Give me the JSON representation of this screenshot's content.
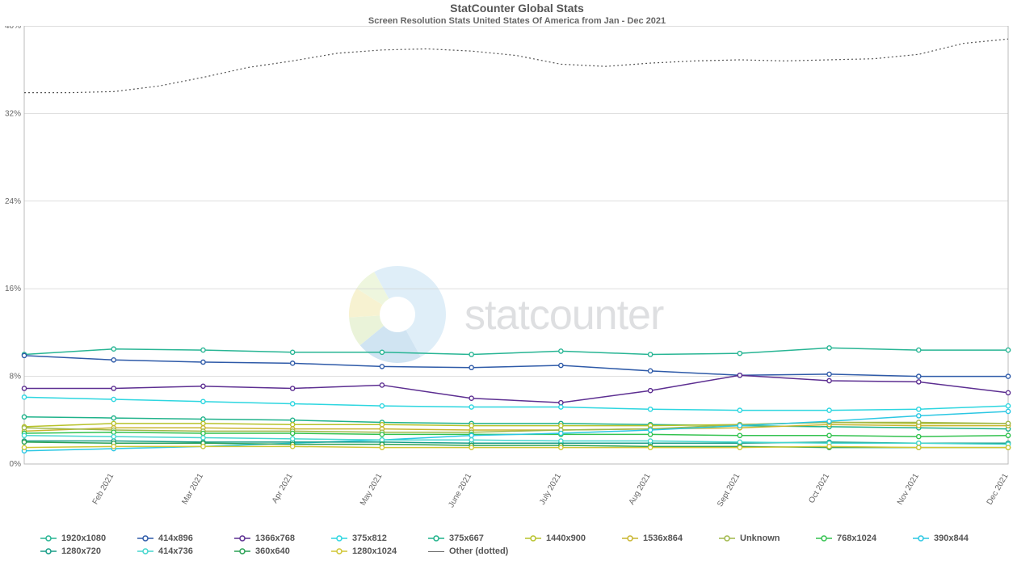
{
  "title": "StatCounter Global Stats",
  "subtitle": "Screen Resolution Stats United States Of America from Jan - Dec 2021",
  "watermark_text": "statcounter",
  "chart": {
    "type": "line",
    "xlim": [
      0,
      11
    ],
    "ylim": [
      0,
      40
    ],
    "ytick_step": 8,
    "ytick_suffix": "%",
    "grid_color": "#cccccc",
    "background_color": "#ffffff",
    "border_color": "#bbbbbb",
    "title_fontsize": 14,
    "subtitle_fontsize": 11,
    "tick_fontsize": 10,
    "marker_radius": 2.6,
    "line_width": 1.5,
    "x_labels": [
      "",
      "Feb 2021",
      "Mar 2021",
      "Apr 2021",
      "May 2021",
      "June 2021",
      "July 2021",
      "Aug 2021",
      "Sept 2021",
      "Oct 2021",
      "Nov 2021",
      "Dec 2021"
    ],
    "series": [
      {
        "name": "1920x1080",
        "color": "#28b594",
        "values": [
          10.0,
          10.5,
          10.4,
          10.2,
          10.2,
          10.0,
          10.3,
          10.0,
          10.1,
          10.6,
          10.4,
          10.4,
          10.1
        ]
      },
      {
        "name": "414x896",
        "color": "#2e5aa8",
        "values": [
          9.9,
          9.5,
          9.3,
          9.2,
          8.9,
          8.8,
          9.0,
          8.5,
          8.1,
          8.2,
          8.0,
          8.0,
          8.3
        ]
      },
      {
        "name": "1366x768",
        "color": "#5c2e91",
        "values": [
          6.9,
          6.9,
          7.1,
          6.9,
          7.2,
          6.0,
          5.6,
          6.7,
          8.1,
          7.6,
          7.5,
          6.5,
          6.5
        ]
      },
      {
        "name": "375x812",
        "color": "#2dd6e0",
        "values": [
          6.1,
          5.9,
          5.7,
          5.5,
          5.3,
          5.2,
          5.2,
          5.0,
          4.9,
          4.9,
          5.0,
          5.3,
          5.3
        ]
      },
      {
        "name": "375x667",
        "color": "#1fb28a",
        "values": [
          4.3,
          4.2,
          4.1,
          4.0,
          3.8,
          3.7,
          3.7,
          3.6,
          3.5,
          3.4,
          3.3,
          3.2,
          3.2
        ]
      },
      {
        "name": "1440x900",
        "color": "#b7c22a",
        "values": [
          3.4,
          3.7,
          3.7,
          3.6,
          3.6,
          3.5,
          3.5,
          3.5,
          3.6,
          3.8,
          3.7,
          3.7,
          3.6
        ]
      },
      {
        "name": "1536x864",
        "color": "#c9b52f",
        "values": [
          3.0,
          3.3,
          3.3,
          3.2,
          3.2,
          3.1,
          3.1,
          3.2,
          3.3,
          3.6,
          3.5,
          3.5,
          3.4
        ]
      },
      {
        "name": "Unknown",
        "color": "#a0b84a",
        "values": [
          3.3,
          3.1,
          3.0,
          3.0,
          2.9,
          2.9,
          3.1,
          3.2,
          3.6,
          3.8,
          3.8,
          3.7,
          3.0
        ]
      },
      {
        "name": "768x1024",
        "color": "#33c24f",
        "values": [
          2.8,
          2.9,
          2.8,
          2.8,
          2.7,
          2.7,
          2.7,
          2.7,
          2.6,
          2.6,
          2.5,
          2.6,
          2.6
        ]
      },
      {
        "name": "390x844",
        "color": "#2bc7e3",
        "values": [
          1.2,
          1.4,
          1.6,
          1.9,
          2.2,
          2.6,
          2.8,
          3.1,
          3.5,
          3.9,
          4.4,
          4.8,
          5.0
        ]
      },
      {
        "name": "1280x720",
        "color": "#1a9e88",
        "values": [
          2.1,
          2.1,
          2.0,
          2.0,
          2.0,
          1.9,
          1.9,
          1.9,
          1.9,
          2.0,
          1.9,
          1.9,
          1.9
        ]
      },
      {
        "name": "414x736",
        "color": "#45d6ce",
        "values": [
          2.6,
          2.5,
          2.4,
          2.3,
          2.2,
          2.2,
          2.1,
          2.1,
          2.0,
          1.9,
          1.9,
          1.8,
          1.8
        ]
      },
      {
        "name": "360x640",
        "color": "#2aa154",
        "values": [
          2.0,
          1.9,
          1.9,
          1.8,
          1.8,
          1.7,
          1.7,
          1.6,
          1.6,
          1.5,
          1.5,
          1.5,
          1.5
        ]
      },
      {
        "name": "1280x1024",
        "color": "#d0c635",
        "values": [
          1.5,
          1.6,
          1.6,
          1.6,
          1.5,
          1.5,
          1.5,
          1.5,
          1.5,
          1.6,
          1.5,
          1.5,
          1.5
        ]
      }
    ],
    "other": {
      "name": "Other (dotted)",
      "color": "#555555",
      "values": [
        33.9,
        33.9,
        34.0,
        34.5,
        35.3,
        36.2,
        36.8,
        37.5,
        37.8,
        37.9,
        37.7,
        37.3,
        36.5,
        36.3,
        36.6,
        36.8,
        36.9,
        36.8,
        36.9,
        37.0,
        37.4,
        38.4,
        38.8
      ]
    }
  },
  "watermark_donut": {
    "outer_r": 60,
    "inner_r": 22,
    "slices": [
      {
        "color": "#8fc4e9",
        "frac": 0.5
      },
      {
        "color": "#5a9fd4",
        "frac": 0.22
      },
      {
        "color": "#b7d67a",
        "frac": 0.1
      },
      {
        "color": "#e6d35c",
        "frac": 0.1
      },
      {
        "color": "#c5e08c",
        "frac": 0.08
      }
    ]
  }
}
